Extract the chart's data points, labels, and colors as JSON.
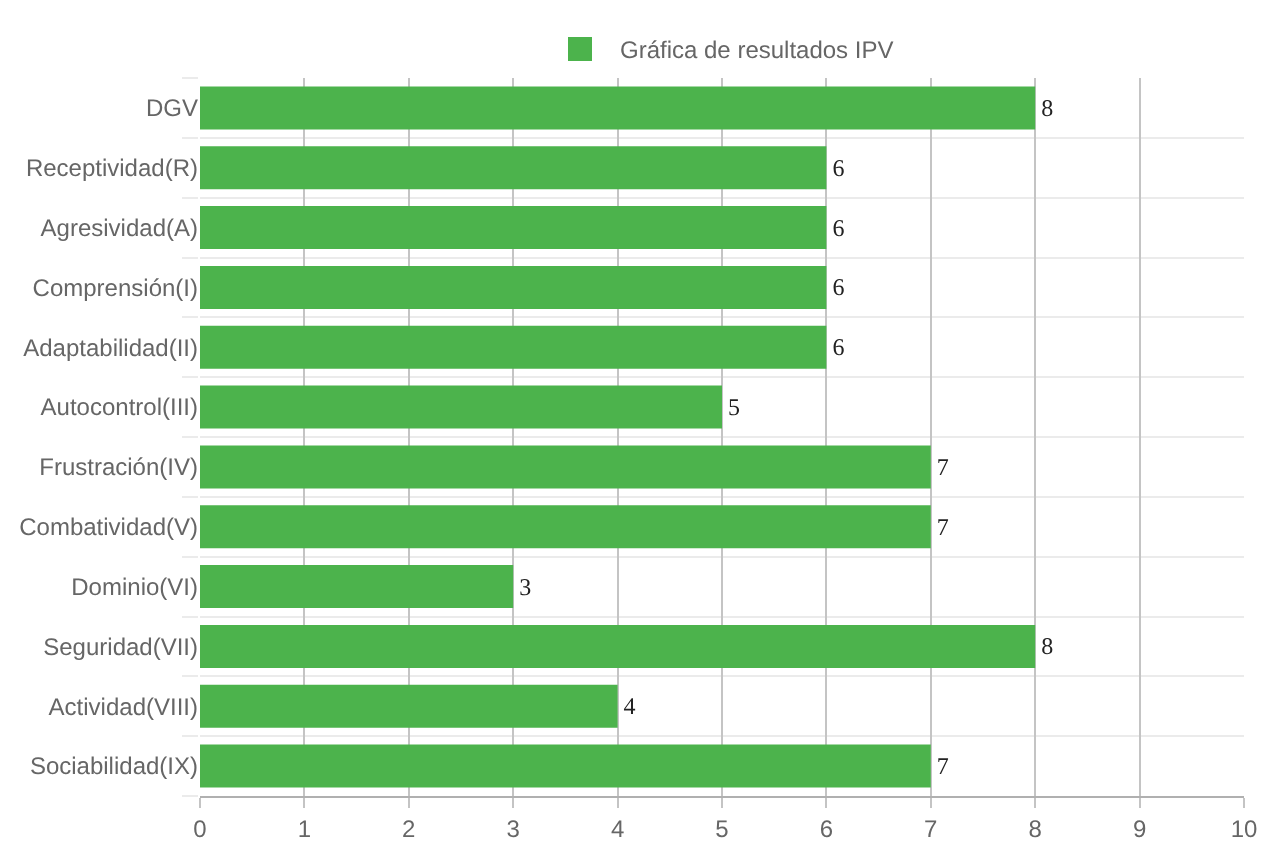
{
  "chart_data": {
    "type": "bar",
    "orientation": "horizontal",
    "categories": [
      "DGV",
      "Receptividad(R)",
      "Agresividad(A)",
      "Comprensión(I)",
      "Adaptabilidad(II)",
      "Autocontrol(III)",
      "Frustración(IV)",
      "Combatividad(V)",
      "Dominio(VI)",
      "Seguridad(VII)",
      "Actividad(VIII)",
      "Sociabilidad(IX)"
    ],
    "series": [
      {
        "name": "Gráfica de resultados IPV",
        "color": "#4cb34c",
        "values": [
          8,
          6,
          6,
          6,
          6,
          5,
          7,
          7,
          3,
          8,
          4,
          7
        ]
      }
    ],
    "xlim": [
      0,
      10
    ],
    "xticks": [
      0,
      1,
      2,
      3,
      4,
      5,
      6,
      7,
      8,
      9,
      10
    ],
    "grid": true,
    "legend": "top",
    "data_labels": true
  }
}
